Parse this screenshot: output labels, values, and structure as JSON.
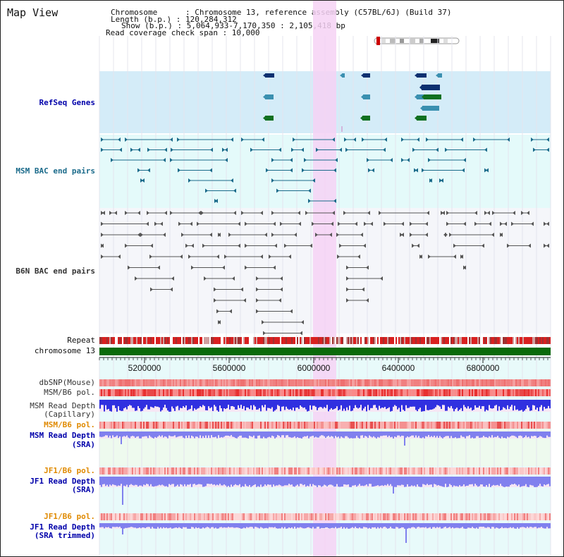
{
  "header": {
    "title": "Map View",
    "chromosome_line": "Chromosome      : Chromosome 13, reference assembly (C57BL/6J) (Build 37)",
    "length_line": "Length (b.p.) : 120,284,312",
    "show_line": "Show (b.p.) : 5,064,933-7,170,350 : 2,105,418 bp",
    "coverage_line": "Read coverage check span : 10,000"
  },
  "tracks": {
    "refseq": "RefSeq Genes",
    "msm_bac": "MSM BAC end pairs",
    "b6n_bac": "B6N BAC end pairs",
    "repeat": "Repeat",
    "chromosome": "chromosome 13",
    "dbsnp": "dbSNP(Mouse)",
    "msm_b6_pol_1": "MSM/B6 pol.",
    "msm_read_depth_cap_1": "MSM Read Depth",
    "msm_read_depth_cap_2": "(Capillary)",
    "msm_b6_pol_2": "MSM/B6 pol.",
    "msm_read_depth_sra_1": "MSM Read Depth",
    "msm_read_depth_sra_2": "(SRA)",
    "jf1_b6_pol_1": "JF1/B6 pol.",
    "jf1_read_depth_sra_1": "JF1 Read Depth",
    "jf1_read_depth_sra_2": "(SRA)",
    "jf1_b6_pol_2": "JF1/B6 pol.",
    "jf1_read_depth_trim_1": "JF1 Read Depth",
    "jf1_read_depth_trim_2": "(SRA trimmed)"
  },
  "axis": {
    "ticks": [
      "5200000",
      "5600000",
      "6000000",
      "6400000",
      "6800000"
    ]
  },
  "colors": {
    "refseq_bg": "#d4ecf8",
    "msm_bg": "#e4fafa",
    "b6n_bg": "#f5f6fa",
    "highlight": "#f6d2f4",
    "gene_navy": "#0c3070",
    "gene_teal": "#3a90b0",
    "gene_green": "#107020",
    "msm_pair": "#1a6a8a",
    "b6n_pair": "#555555",
    "chromosome_bar": "#0a6a0a",
    "depth_blue": "#3030e0",
    "depth_light": "#8080ee",
    "pol_red": "#ee3030"
  }
}
